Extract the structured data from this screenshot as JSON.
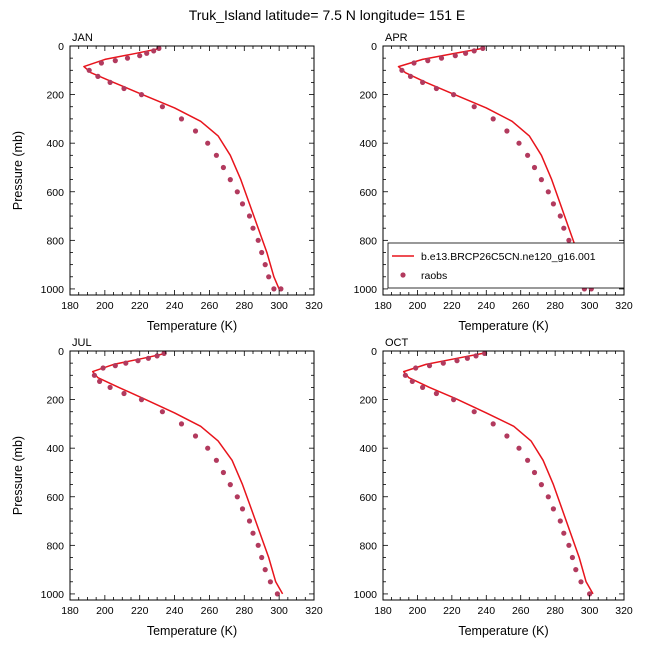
{
  "title": "Truk_Island  latitude= 7.5 N longitude= 151 E",
  "xlabel": "Temperature (K)",
  "ylabel": "Pressure (mb)",
  "legend": {
    "model_label": "b.e13.BRCP26C5CN.ne120_g16.001",
    "obs_label": "raobs"
  },
  "colors": {
    "model_line": "#e8141c",
    "obs_marker": "#b23a5e",
    "axis": "#000000"
  },
  "chart_data": {
    "type": "line",
    "xlim": [
      180,
      320
    ],
    "ylim": [
      0,
      1025
    ],
    "y_reversed": true,
    "xticks": [
      180,
      200,
      220,
      240,
      260,
      280,
      300,
      320
    ],
    "yticks": [
      0,
      200,
      400,
      600,
      800,
      1000
    ],
    "legend_placement": "lower-right of APR panel",
    "panels": [
      {
        "name": "JAN",
        "model": {
          "temperature": [
            232,
            218,
            200,
            188,
            192,
            205,
            220,
            240,
            255,
            265,
            272,
            278,
            283,
            288,
            293,
            297,
            300
          ],
          "pressure": [
            10,
            30,
            55,
            85,
            110,
            150,
            195,
            255,
            310,
            370,
            450,
            550,
            650,
            750,
            850,
            950,
            1000
          ]
        },
        "obs": {
          "temperature": [
            231,
            228,
            224,
            220,
            213,
            206,
            198,
            191,
            196,
            203,
            211,
            221,
            233,
            244,
            252,
            259,
            264,
            268,
            272,
            276,
            279,
            283,
            285,
            288,
            290,
            292,
            294,
            297,
            301
          ],
          "pressure": [
            10,
            20,
            30,
            40,
            50,
            60,
            70,
            100,
            125,
            150,
            175,
            200,
            250,
            300,
            350,
            400,
            450,
            500,
            550,
            600,
            650,
            700,
            750,
            800,
            850,
            900,
            950,
            1000,
            1000
          ]
        }
      },
      {
        "name": "APR",
        "model": {
          "temperature": [
            238,
            222,
            203,
            189,
            193,
            205,
            220,
            240,
            255,
            265,
            272,
            278,
            283,
            288,
            293,
            297,
            301
          ],
          "pressure": [
            10,
            30,
            55,
            85,
            110,
            150,
            195,
            255,
            310,
            370,
            450,
            550,
            650,
            750,
            850,
            950,
            1000
          ]
        },
        "obs": {
          "temperature": [
            238,
            233,
            228,
            222,
            214,
            206,
            198,
            191,
            196,
            203,
            211,
            221,
            233,
            244,
            252,
            259,
            264,
            268,
            272,
            276,
            279,
            283,
            285,
            288,
            290,
            292,
            294,
            297,
            301
          ],
          "pressure": [
            10,
            20,
            30,
            40,
            50,
            60,
            70,
            100,
            125,
            150,
            175,
            200,
            250,
            300,
            350,
            400,
            450,
            500,
            550,
            600,
            650,
            700,
            750,
            800,
            850,
            900,
            950,
            1000,
            1000
          ]
        }
      },
      {
        "name": "JUL",
        "model": {
          "temperature": [
            235,
            222,
            205,
            193,
            196,
            208,
            222,
            240,
            255,
            265,
            273,
            279,
            284,
            289,
            294,
            298,
            302
          ],
          "pressure": [
            10,
            30,
            55,
            85,
            110,
            150,
            195,
            255,
            310,
            370,
            450,
            550,
            650,
            750,
            850,
            950,
            1000
          ]
        },
        "obs": {
          "temperature": [
            234,
            230,
            225,
            219,
            212,
            206,
            199,
            194,
            197,
            203,
            211,
            221,
            233,
            244,
            252,
            259,
            264,
            268,
            272,
            276,
            279,
            283,
            285,
            288,
            290,
            292,
            295,
            299
          ],
          "pressure": [
            10,
            20,
            30,
            40,
            50,
            60,
            70,
            100,
            125,
            150,
            175,
            200,
            250,
            300,
            350,
            400,
            450,
            500,
            550,
            600,
            650,
            700,
            750,
            800,
            850,
            900,
            950,
            1000
          ]
        }
      },
      {
        "name": "OCT",
        "model": {
          "temperature": [
            238,
            223,
            205,
            192,
            195,
            207,
            222,
            240,
            256,
            266,
            273,
            279,
            284,
            289,
            294,
            298,
            302
          ],
          "pressure": [
            10,
            30,
            55,
            85,
            110,
            150,
            195,
            255,
            310,
            370,
            450,
            550,
            650,
            750,
            850,
            950,
            1000
          ]
        },
        "obs": {
          "temperature": [
            239,
            234,
            229,
            223,
            215,
            207,
            199,
            193,
            197,
            203,
            211,
            221,
            233,
            244,
            252,
            259,
            264,
            268,
            272,
            276,
            279,
            283,
            285,
            288,
            290,
            292,
            295,
            300
          ],
          "pressure": [
            10,
            20,
            30,
            40,
            50,
            60,
            70,
            100,
            125,
            150,
            175,
            200,
            250,
            300,
            350,
            400,
            450,
            500,
            550,
            600,
            650,
            700,
            750,
            800,
            850,
            900,
            950,
            1000
          ]
        }
      }
    ]
  }
}
